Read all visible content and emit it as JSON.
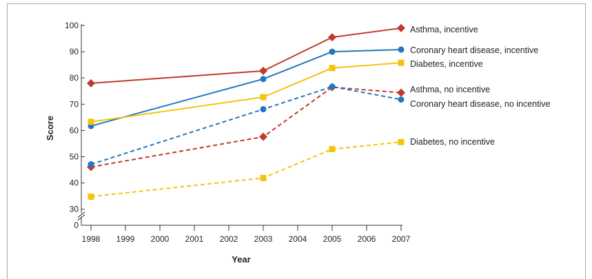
{
  "chart_data": {
    "type": "line",
    "title": "",
    "xlabel": "Year",
    "ylabel": "Score",
    "x_ticks": [
      "1998",
      "1999",
      "2000",
      "2001",
      "2002",
      "2003",
      "2004",
      "2005",
      "2006",
      "2007"
    ],
    "y_ticks": [
      "0",
      "30",
      "40",
      "50",
      "60",
      "70",
      "80",
      "90",
      "100"
    ],
    "xlim": [
      1998,
      2007
    ],
    "ylim": [
      30,
      100
    ],
    "y_axis_break": true,
    "grid": false,
    "legend": "direct labels at right end of lines",
    "series": [
      {
        "name": "Asthma, incentive",
        "color": "#c0392b",
        "marker": "diamond",
        "dashed": false,
        "x": [
          1998,
          2003,
          2005,
          2007
        ],
        "y": [
          78,
          82.7,
          95.5,
          99
        ]
      },
      {
        "name": "Coronary heart disease, incentive",
        "color": "#1f78c1",
        "marker": "circle",
        "dashed": false,
        "x": [
          1998,
          2003,
          2005,
          2007
        ],
        "y": [
          61.7,
          79.6,
          90,
          90.8
        ]
      },
      {
        "name": "Diabetes, incentive",
        "color": "#f2c40f",
        "marker": "square",
        "dashed": false,
        "x": [
          1998,
          2003,
          2005,
          2007
        ],
        "y": [
          63.3,
          72.7,
          83.8,
          85.8
        ]
      },
      {
        "name": "Asthma, no incentive",
        "color": "#c0392b",
        "marker": "diamond",
        "dashed": true,
        "x": [
          1998,
          2003,
          2005,
          2007
        ],
        "y": [
          46.1,
          57.6,
          76.5,
          74.4
        ]
      },
      {
        "name": "Coronary heart disease, no incentive",
        "color": "#1f78c1",
        "marker": "circle",
        "dashed": true,
        "x": [
          1998,
          2003,
          2005,
          2007
        ],
        "y": [
          47.1,
          68.1,
          76.7,
          71.8
        ]
      },
      {
        "name": "Diabetes, no incentive",
        "color": "#f2c40f",
        "marker": "square",
        "dashed": true,
        "x": [
          1998,
          2003,
          2005,
          2007
        ],
        "y": [
          34.8,
          41.9,
          52.9,
          55.6
        ]
      }
    ]
  }
}
